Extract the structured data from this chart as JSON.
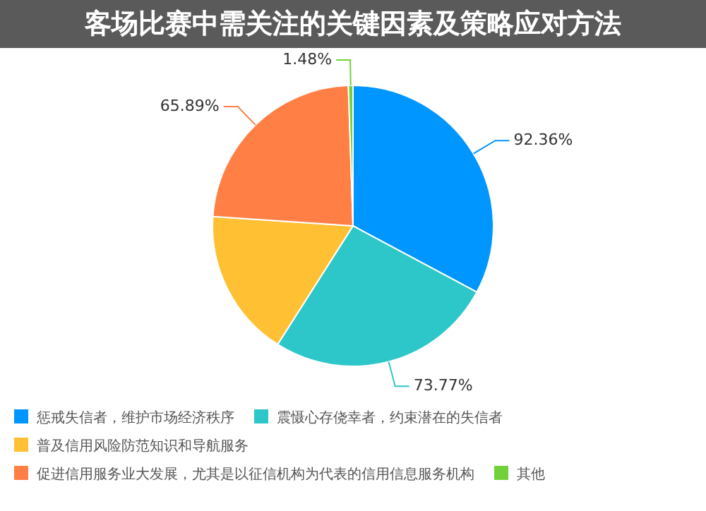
{
  "chart_data": {
    "type": "pie",
    "title": "客场比赛中需关注的关键因素及策略应对方法",
    "categories": [
      "惩戒失信者，维护市场经济秩序",
      "震慑心存侥幸者，约束潜在的失信者",
      "普及信用风险防范知识和导航服务",
      "促进信用服务业大发展，尤其是以征信机构为代表的信用信息服务机构",
      "其他"
    ],
    "values": [
      92.36,
      73.77,
      48,
      65.89,
      1.48
    ],
    "value_labels": [
      "92.36%",
      "73.77%",
      null,
      "65.89%",
      "1.48%"
    ],
    "colors": [
      "#0096ff",
      "#2ec7c9",
      "#ffc133",
      "#ff7f45",
      "#72d13a"
    ],
    "legend": "bottom"
  }
}
